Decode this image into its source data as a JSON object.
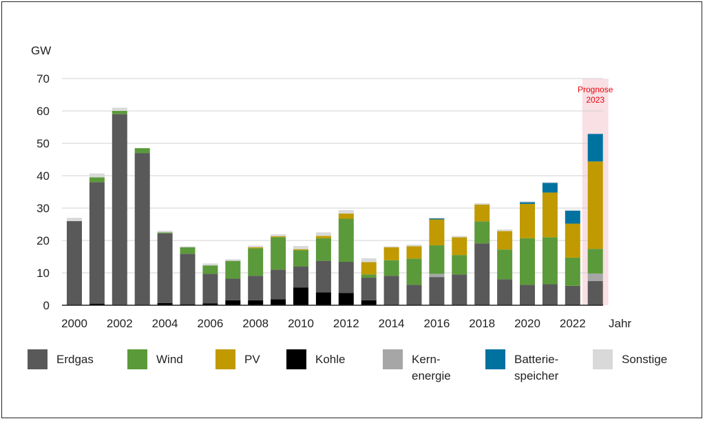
{
  "chart_data": {
    "type": "bar",
    "stacked": true,
    "ylabel": "GW",
    "xlabel": "Jahr",
    "ylim": [
      0,
      70
    ],
    "yticks": [
      0,
      10,
      20,
      30,
      40,
      50,
      60,
      70
    ],
    "grid": true,
    "legend_position": "bottom",
    "categories": [
      "2000",
      "2001",
      "2002",
      "2003",
      "2004",
      "2005",
      "2006",
      "2007",
      "2008",
      "2009",
      "2010",
      "2011",
      "2012",
      "2013",
      "2014",
      "2015",
      "2016",
      "2017",
      "2018",
      "2019",
      "2020",
      "2021",
      "2022",
      "2023"
    ],
    "xtick_labels": [
      "2000",
      "2002",
      "2004",
      "2006",
      "2008",
      "2010",
      "2012",
      "2014",
      "2016",
      "2018",
      "2020",
      "2022"
    ],
    "annotation": {
      "text": [
        "Prognose",
        "2023"
      ],
      "category": "2023",
      "color": "#e8000b",
      "highlight": "#f8e0e4"
    },
    "series": [
      {
        "name": "Kohle",
        "color": "#000000",
        "values": [
          0,
          0.5,
          0,
          0,
          0.7,
          0.3,
          0.6,
          1.5,
          1.5,
          1.8,
          5.5,
          4,
          3.8,
          1.5,
          0,
          0,
          0,
          0,
          0,
          0,
          0,
          0,
          0,
          0
        ]
      },
      {
        "name": "Erdgas",
        "color": "#595959",
        "values": [
          26,
          37.5,
          59,
          47,
          21.5,
          15.6,
          9.1,
          6.7,
          7.6,
          9.2,
          6.5,
          9.7,
          9.6,
          7,
          9.1,
          6.3,
          8.7,
          9.5,
          19.1,
          8,
          6.3,
          6.5,
          6,
          7.5
        ]
      },
      {
        "name": "Kernenergie",
        "color": "#a6a6a6",
        "values": [
          0,
          0,
          0,
          0,
          0,
          0,
          0,
          0,
          0,
          0,
          0,
          0,
          0,
          0,
          0,
          0,
          1,
          0,
          0,
          0,
          0,
          0,
          0,
          2.3
        ]
      },
      {
        "name": "Wind",
        "color": "#5b9a3a",
        "values": [
          0,
          1.5,
          1,
          1.5,
          0.3,
          2,
          2.6,
          5.5,
          8.5,
          10,
          5,
          7,
          13.3,
          1,
          4.8,
          8.1,
          8.8,
          6,
          6.8,
          9.2,
          14.4,
          14.5,
          8.7,
          7.6
        ]
      },
      {
        "name": "PV",
        "color": "#c09a00",
        "values": [
          0,
          0,
          0,
          0,
          0,
          0,
          0,
          0,
          0.3,
          0.3,
          0.3,
          0.7,
          1.6,
          3.8,
          4,
          3.8,
          8,
          5.5,
          5.2,
          5.7,
          10.6,
          13.8,
          10.5,
          27
        ]
      },
      {
        "name": "Batteriespeicher",
        "color": "#0072a0",
        "values": [
          0,
          0,
          0,
          0,
          0,
          0,
          0,
          0,
          0,
          0,
          0,
          0,
          0,
          0,
          0,
          0,
          0.3,
          0,
          0,
          0,
          0.5,
          3,
          4,
          8.5
        ]
      },
      {
        "name": "Sonstige",
        "color": "#d9d9d9",
        "values": [
          1,
          1.2,
          1,
          0,
          0.5,
          0.3,
          0.6,
          0.5,
          0.5,
          0.6,
          1,
          1.1,
          1.1,
          1.2,
          0.3,
          0.5,
          0.2,
          0.4,
          0.4,
          0.5,
          0.3,
          0.2,
          0.3,
          0
        ]
      }
    ],
    "legend": [
      {
        "series": "Erdgas",
        "label": [
          "Erdgas"
        ]
      },
      {
        "series": "Wind",
        "label": [
          "Wind"
        ]
      },
      {
        "series": "PV",
        "label": [
          "PV"
        ]
      },
      {
        "series": "Kohle",
        "label": [
          "Kohle"
        ]
      },
      {
        "series": "Kernenergie",
        "label": [
          "Kern-",
          "energie"
        ]
      },
      {
        "series": "Batteriespeicher",
        "label": [
          "Batterie-",
          "speicher"
        ]
      },
      {
        "series": "Sonstige",
        "label": [
          "Sonstige"
        ]
      }
    ]
  }
}
